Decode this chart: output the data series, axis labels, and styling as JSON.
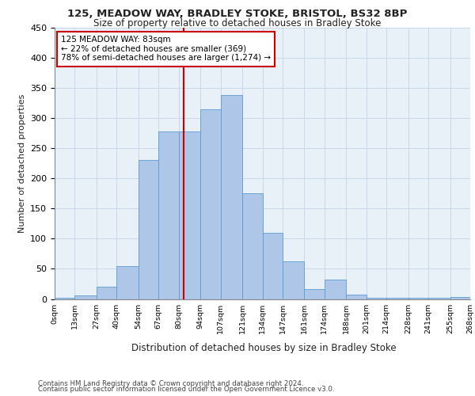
{
  "title1": "125, MEADOW WAY, BRADLEY STOKE, BRISTOL, BS32 8BP",
  "title2": "Size of property relative to detached houses in Bradley Stoke",
  "xlabel": "Distribution of detached houses by size in Bradley Stoke",
  "ylabel": "Number of detached properties",
  "footer1": "Contains HM Land Registry data © Crown copyright and database right 2024.",
  "footer2": "Contains public sector information licensed under the Open Government Licence v3.0.",
  "annotation_line1": "125 MEADOW WAY: 83sqm",
  "annotation_line2": "← 22% of detached houses are smaller (369)",
  "annotation_line3": "78% of semi-detached houses are larger (1,274) →",
  "property_size": 83,
  "bin_edges": [
    0,
    13,
    27,
    40,
    54,
    67,
    80,
    94,
    107,
    121,
    134,
    147,
    161,
    174,
    188,
    201,
    214,
    228,
    241,
    255,
    268
  ],
  "bar_heights": [
    2,
    6,
    20,
    54,
    230,
    278,
    278,
    315,
    338,
    175,
    110,
    63,
    16,
    32,
    7,
    2,
    2,
    2,
    2,
    3
  ],
  "bar_color": "#aec6e8",
  "bar_edge_color": "#5b9bd5",
  "vline_color": "#cc0000",
  "vline_x": 83,
  "annotation_box_color": "#ffffff",
  "annotation_box_edge_color": "#cc0000",
  "grid_color": "#c8d8ea",
  "background_color": "#e8f0f8",
  "ylim": [
    0,
    450
  ],
  "tick_labels": [
    "0sqm",
    "13sqm",
    "27sqm",
    "40sqm",
    "54sqm",
    "67sqm",
    "80sqm",
    "94sqm",
    "107sqm",
    "121sqm",
    "134sqm",
    "147sqm",
    "161sqm",
    "174sqm",
    "188sqm",
    "201sqm",
    "214sqm",
    "228sqm",
    "241sqm",
    "255sqm",
    "268sqm"
  ]
}
